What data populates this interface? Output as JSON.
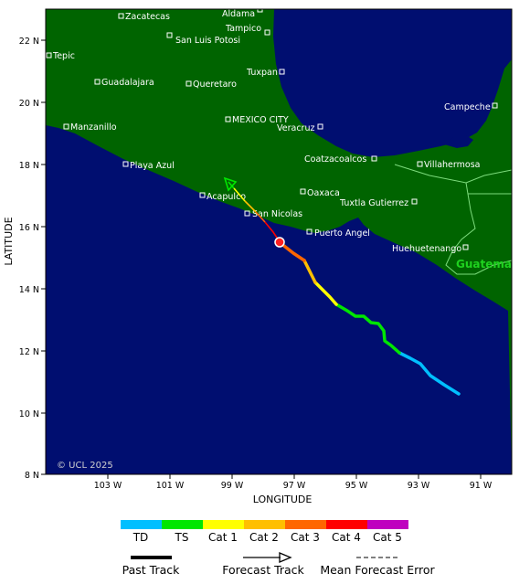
{
  "map": {
    "x_axis_title": "LONGITUDE",
    "y_axis_title": "LATITUDE",
    "lon_ticks": [
      "103 W",
      "101 W",
      "99 W",
      "97 W",
      "95 W",
      "93 W",
      "91 W"
    ],
    "lat_ticks": [
      "22 N",
      "20 N",
      "18 N",
      "16 N",
      "14 N",
      "12 N",
      "10 N",
      "8 N"
    ],
    "copyright": "© UCL 2025",
    "country_label": "Guatema",
    "colors": {
      "ocean": "#000e70",
      "land": "#006400",
      "border": "#7ddc7d",
      "country_label": "#1fd11f"
    }
  },
  "cities": [
    {
      "name": "Zacatecas"
    },
    {
      "name": "Aldama"
    },
    {
      "name": "Tampico"
    },
    {
      "name": "San Luis Potosi"
    },
    {
      "name": "Tepic"
    },
    {
      "name": "Guadalajara"
    },
    {
      "name": "Queretaro"
    },
    {
      "name": "Tuxpan"
    },
    {
      "name": "Campeche"
    },
    {
      "name": "MEXICO CITY"
    },
    {
      "name": "Manzanillo"
    },
    {
      "name": "Veracruz"
    },
    {
      "name": "Coatzacoalcos"
    },
    {
      "name": "Villahermosa"
    },
    {
      "name": "Playa Azul"
    },
    {
      "name": "Acapulco"
    },
    {
      "name": "Oaxaca"
    },
    {
      "name": "Tuxtla Gutierrez"
    },
    {
      "name": "San Nicolas"
    },
    {
      "name": "Puerto Angel"
    },
    {
      "name": "Huehuetenango"
    }
  ],
  "legend": {
    "categories": [
      {
        "label": "TD",
        "color": "#00bfff"
      },
      {
        "label": "TS",
        "color": "#00e600"
      },
      {
        "label": "Cat 1",
        "color": "#ffff00"
      },
      {
        "label": "Cat 2",
        "color": "#ffbf00"
      },
      {
        "label": "Cat 3",
        "color": "#ff6600"
      },
      {
        "label": "Cat 4",
        "color": "#ff0000"
      },
      {
        "label": "Cat 5",
        "color": "#bf00bf"
      }
    ],
    "past_track": "Past Track",
    "forecast_track": "Forecast Track",
    "mean_forecast_error": "Mean Forecast Error"
  }
}
